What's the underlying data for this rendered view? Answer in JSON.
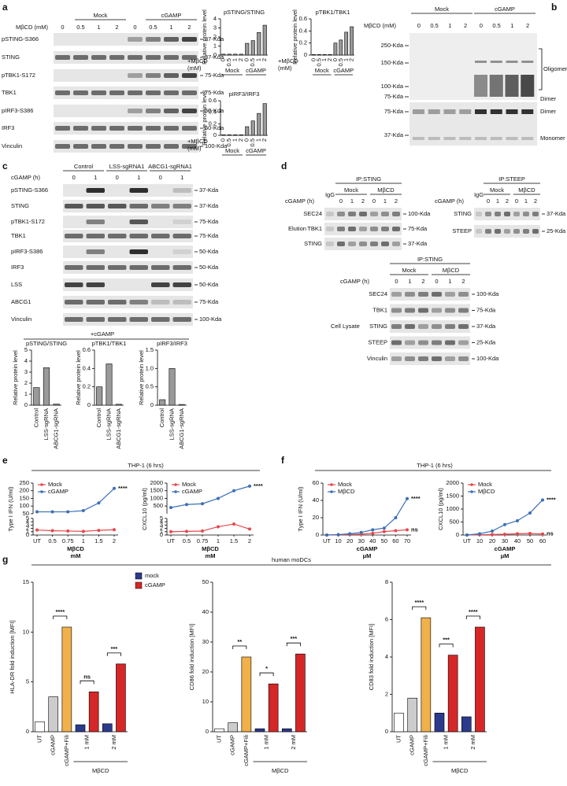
{
  "figure": {
    "a": {
      "letter": "a",
      "dose_label": "MβCD (mM)",
      "groups": [
        "Mock",
        "cGAMP"
      ],
      "doses": [
        "0",
        "0.5",
        "1",
        "2",
        "0",
        "0.5",
        "1",
        "2"
      ],
      "rows": [
        "pSTING-S366",
        "STING",
        "pTBK1-S172",
        "TBK1",
        "pIRF3-S386",
        "IRF3",
        "Vinculin"
      ],
      "mw": [
        "37-Kda",
        "37-Kda",
        "75-Kda",
        "75-Kda",
        "50-Kda",
        "50-Kda",
        "100-Kda"
      ]
    },
    "b": {
      "letter": "b",
      "dose_label": "MβCD (mM)",
      "groups": [
        "Mock",
        "cGAMP"
      ],
      "doses": [
        "0",
        "0.5",
        "1",
        "2",
        "0",
        "0.5",
        "1",
        "2"
      ],
      "mw_upper": [
        "250-Kda",
        "150-Kda",
        "100-Kda",
        "75-Kda"
      ],
      "mw_lower": [
        "75-Kda",
        "37-Kda"
      ],
      "species_upper": [
        "Oligomers",
        "Dimer"
      ],
      "species_lower": [
        "Dimer",
        "Monomer"
      ]
    },
    "c": {
      "letter": "c",
      "time_label": "cGAMP (h)",
      "groups": [
        "Control",
        "LSS-sgRNA1",
        "ABCG1-sgRNA1"
      ],
      "times": [
        "0",
        "1",
        "0",
        "1",
        "0",
        "1"
      ],
      "rows": [
        "pSTING-S366",
        "STING",
        "pTBK1-S172",
        "TBK1",
        "pIRF3-S386",
        "IRF3",
        "LSS",
        "ABCG1",
        "Vinculin"
      ],
      "mw": [
        "37-Kda",
        "37-Kda",
        "75-Kda",
        "75-Kda",
        "50-Kda",
        "50-Kda",
        "50-Kda",
        "75-Kda",
        "100-Kda"
      ],
      "charts_label": "+cGAMP"
    },
    "d": {
      "letter": "d",
      "blots": [
        {
          "ip": "IP:STING",
          "igg": "IgG",
          "time_label": "cGAMP (h)",
          "groups": [
            "Mock",
            "MβCD"
          ],
          "times": [
            "0",
            "1",
            "2",
            "0",
            "1",
            "2"
          ],
          "rows": [
            "SEC24",
            "TBK1",
            "STING"
          ],
          "mw": [
            "100-Kda",
            "75-Kda",
            "37-Kda"
          ],
          "side": "Elution"
        },
        {
          "ip": "IP:STEEP",
          "igg": "IgG",
          "time_label": "cGAMP (h)",
          "groups": [
            "Mock",
            "MβCD"
          ],
          "times": [
            "0",
            "1",
            "2",
            "0",
            "1",
            "2"
          ],
          "rows": [
            "STING",
            "STEEP"
          ],
          "mw": [
            "37-Kda",
            "25-Kda"
          ]
        },
        {
          "ip": "IP:STING",
          "time_label": "cGAMP (h)",
          "groups": [
            "Mock",
            "MβCD"
          ],
          "times": [
            "0",
            "1",
            "2",
            "0",
            "1",
            "2"
          ],
          "rows": [
            "SEC24",
            "TBK1",
            "STING",
            "STEEP",
            "Vinculin"
          ],
          "mw": [
            "100-Kda",
            "75-Kda",
            "37-Kda",
            "25-Kda",
            "100-Kda"
          ],
          "side": "Cell Lysate"
        }
      ]
    },
    "e": {
      "letter": "e",
      "header": "THP-1 (6 hrs)"
    },
    "f": {
      "letter": "f",
      "header": "THP-1 (6 hrs)"
    },
    "g": {
      "letter": "g",
      "header": "human moDCs",
      "legend": [
        {
          "name": "mock",
          "color": "#2b3a8c"
        },
        {
          "name": "cGAMP",
          "color": "#d62728"
        }
      ]
    }
  },
  "chart_data": [
    {
      "type": "bar",
      "title": "pSTING/STING",
      "ylabel": "Relative protein level",
      "categories": [
        "0",
        "0.5",
        "1",
        "2",
        "0",
        "0.5",
        "1",
        "2"
      ],
      "groups": [
        "Mock",
        "cGAMP"
      ],
      "xlabel": [
        "+MβCD",
        "(mM)"
      ],
      "values": [
        0.1,
        0.1,
        0.1,
        0.1,
        1.3,
        1.6,
        2.5,
        3.3
      ],
      "color": "#9a9a9a",
      "ylim": [
        0,
        4
      ],
      "yticks": [
        0,
        1,
        2,
        3,
        4
      ]
    },
    {
      "type": "bar",
      "title": "pTBK1/TBK1",
      "ylabel": "Relative protein level",
      "categories": [
        "0",
        "0.5",
        "1",
        "2",
        "0",
        "0.5",
        "1",
        "2"
      ],
      "groups": [
        "Mock",
        "cGAMP"
      ],
      "xlabel": [
        "+MβCD",
        "(mM)"
      ],
      "values": [
        0.01,
        0.01,
        0.01,
        0.01,
        0.2,
        0.25,
        0.38,
        0.47
      ],
      "color": "#9a9a9a",
      "ylim": [
        0,
        0.6
      ],
      "yticks": [
        0,
        0.2,
        0.4,
        0.6
      ]
    },
    {
      "type": "bar",
      "title": "pIRF3/IRF3",
      "ylabel": "Relative protein level",
      "categories": [
        "0",
        "0.5",
        "1",
        "2",
        "0",
        "0.5",
        "1",
        "2"
      ],
      "groups": [
        "Mock",
        "cGAMP"
      ],
      "xlabel": [
        "+MβCD",
        "(mM)"
      ],
      "values": [
        0.01,
        0.01,
        0.01,
        0.01,
        0.15,
        0.25,
        0.38,
        0.55
      ],
      "color": "#9a9a9a",
      "ylim": [
        0,
        0.6
      ],
      "yticks": [
        0,
        0.2,
        0.4,
        0.6
      ]
    },
    {
      "type": "bar",
      "title": "pSTING/STING",
      "ylabel": "Relative protein level",
      "categories": [
        "Control",
        "LSS-sgRNA",
        "ABCG1-sgRNA"
      ],
      "values": [
        1.6,
        3.4,
        0.1
      ],
      "color": "#9a9a9a",
      "ylim": [
        0,
        5
      ],
      "yticks": [
        0,
        1,
        2,
        3,
        4,
        5
      ]
    },
    {
      "type": "bar",
      "title": "pTBK1/TBK1",
      "ylabel": "Relative protein level",
      "categories": [
        "Control",
        "LSS-sgRNA",
        "ABCG1-sgRNA"
      ],
      "values": [
        0.2,
        0.45,
        0.01
      ],
      "color": "#9a9a9a",
      "ylim": [
        0,
        0.6
      ],
      "yticks": [
        0,
        0.2,
        0.4,
        0.6
      ]
    },
    {
      "type": "bar",
      "title": "pIRF3/IRF3",
      "ylabel": "Relative protein level",
      "categories": [
        "Control",
        "LSS-sgRNA",
        "ABCG1-sgRNA"
      ],
      "values": [
        0.15,
        1.0,
        0.02
      ],
      "color": "#9a9a9a",
      "ylim": [
        0,
        1.5
      ],
      "yticks": [
        0,
        0.5,
        {
          "value": 1,
          "label": "1.0"
        },
        1.5
      ]
    },
    {
      "type": "line",
      "ylabel": "Type I IFN (U/ml)",
      "categories": [
        "UT",
        "0.5",
        "0.75",
        "1",
        "1.5",
        "2"
      ],
      "xlabel": "MβCD",
      "xunit": "mM",
      "ylim": [
        0,
        5
      ],
      "yticks": [
        0,
        1,
        2,
        3,
        4,
        5
      ],
      "ylim_upper": [
        50,
        250
      ],
      "yticks_upper": [
        50,
        100,
        150,
        200,
        250
      ],
      "series": [
        {
          "name": "Mock",
          "color": "#e8474c",
          "values": [
            1.5,
            1.3,
            1.2,
            1.1,
            1.4,
            1.6
          ]
        },
        {
          "name": "cGAMP",
          "color": "#3a6fb6",
          "values": [
            62,
            62,
            62,
            70,
            120,
            215
          ],
          "annotation": "****"
        }
      ]
    },
    {
      "type": "line",
      "ylabel": "CXCL10 (pg/ml)",
      "categories": [
        "UT",
        "0.5",
        "0.75",
        "1",
        "1.5",
        "2"
      ],
      "xlabel": "MβCD",
      "xunit": "mM",
      "ylim": [
        0,
        5
      ],
      "yticks": [
        0,
        1,
        2,
        3,
        4,
        5
      ],
      "ylim_upper": [
        0,
        2000
      ],
      "yticks_upper": [
        500,
        1000,
        1500,
        2000
      ],
      "series": [
        {
          "name": "Mock",
          "color": "#e8474c",
          "values": [
            1,
            1.1,
            1.2,
            2.5,
            3.3,
            1.8
          ]
        },
        {
          "name": "cGAMP",
          "color": "#3a6fb6",
          "values": [
            400,
            600,
            650,
            1000,
            1500,
            1800
          ],
          "annotation": "****"
        }
      ]
    },
    {
      "type": "line",
      "ylabel": "Type I IFN (U/ml)",
      "categories": [
        "UT",
        "10",
        "20",
        "30",
        "40",
        "50",
        "60",
        "70"
      ],
      "xlabel": "cGAMP",
      "xunit": "μM",
      "ylim": [
        0,
        60
      ],
      "yticks": [
        0,
        20,
        40,
        60
      ],
      "series": [
        {
          "name": "Mock",
          "color": "#e8474c",
          "values": [
            0,
            0.3,
            0.5,
            1,
            2,
            4,
            5,
            6
          ],
          "annotation": "ns"
        },
        {
          "name": "MβCD",
          "color": "#3a6fb6",
          "values": [
            0,
            0.5,
            1.5,
            3,
            6,
            8,
            20,
            42
          ],
          "annotation": "****"
        }
      ]
    },
    {
      "type": "line",
      "ylabel": "CXCL10 (pg/ml)",
      "categories": [
        "UT",
        "10",
        "20",
        "30",
        "40",
        "50",
        "60"
      ],
      "xlabel": "cGAMP",
      "xunit": "μM",
      "ylim": [
        0,
        2000
      ],
      "yticks": [
        0,
        500,
        1000,
        1500,
        2000
      ],
      "series": [
        {
          "name": "Mock",
          "color": "#e8474c",
          "values": [
            0,
            10,
            20,
            30,
            50,
            60,
            40
          ],
          "annotation": "ns"
        },
        {
          "name": "MβCD",
          "color": "#3a6fb6",
          "values": [
            0,
            50,
            150,
            400,
            550,
            850,
            1350
          ],
          "annotation": "****"
        }
      ]
    },
    {
      "type": "bar",
      "ylabel": "HLA-DR fold induction [MFI]",
      "categories": [
        "UT",
        "cGAMP",
        "cGAMP+Fili",
        "1 mM",
        null,
        "2 mM",
        null
      ],
      "group_label": "MβCD",
      "colors": [
        "#ffffff",
        "#cccccc",
        "#f0b04a",
        "#2b3a8c",
        "#d62728",
        "#2b3a8c",
        "#d62728"
      ],
      "values": [
        1,
        3.5,
        10.5,
        0.7,
        4,
        0.8,
        6.8
      ],
      "ylim": [
        0,
        15
      ],
      "yticks": [
        0,
        5,
        10,
        15
      ],
      "annotations": [
        "****",
        "ns",
        "***"
      ]
    },
    {
      "type": "bar",
      "ylabel": "CD86 fold induction [MFI]",
      "categories": [
        "UT",
        "cGAMP",
        "cGAMP+Fili",
        "1 mM",
        null,
        "2 mM",
        null
      ],
      "group_label": "MβCD",
      "colors": [
        "#ffffff",
        "#cccccc",
        "#f0b04a",
        "#2b3a8c",
        "#d62728",
        "#2b3a8c",
        "#d62728"
      ],
      "values": [
        1,
        3,
        25,
        1,
        16,
        1,
        26
      ],
      "ylim": [
        0,
        50
      ],
      "yticks": [
        0,
        10,
        20,
        30,
        40,
        50
      ],
      "annotations": [
        "**",
        "*",
        "***"
      ]
    },
    {
      "type": "bar",
      "ylabel": "CD83 fold induction [MFI]",
      "categories": [
        "UT",
        "cGAMP",
        "cGAMP+Fili",
        "1 mM",
        null,
        "2 mM",
        null
      ],
      "group_label": "MβCD",
      "colors": [
        "#ffffff",
        "#cccccc",
        "#f0b04a",
        "#2b3a8c",
        "#d62728",
        "#2b3a8c",
        "#d62728"
      ],
      "values": [
        1,
        1.8,
        6.1,
        1,
        4.1,
        0.8,
        5.6
      ],
      "ylim": [
        0,
        8
      ],
      "yticks": [
        0,
        2,
        4,
        6,
        8
      ],
      "annotations": [
        "****",
        "***",
        "****"
      ]
    }
  ]
}
